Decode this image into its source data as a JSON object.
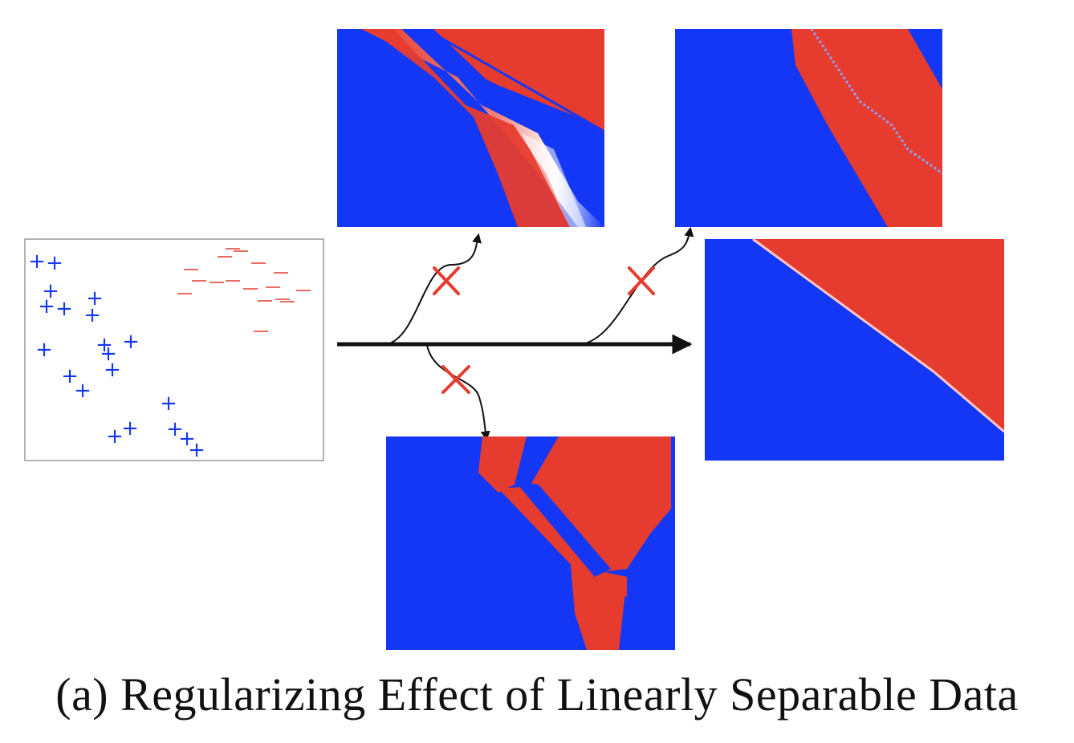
{
  "caption": "(a) Regularizing Effect of Linearly Separable Data",
  "colors": {
    "class_positive": "#1437f5",
    "class_negative": "#e63c2f",
    "arrow": "#111111",
    "reject_mark": "#e63c2f",
    "panel_border": "#999999"
  },
  "markers": {
    "positive_glyph": "+",
    "negative_glyph": "–"
  },
  "icons": [
    "reject-x-icon",
    "reject-x-icon",
    "reject-x-icon"
  ],
  "panels": [
    "training-data-scatter",
    "rejected-boundary-top-left",
    "rejected-boundary-top-right",
    "rejected-boundary-bottom",
    "final-linear-boundary"
  ]
}
